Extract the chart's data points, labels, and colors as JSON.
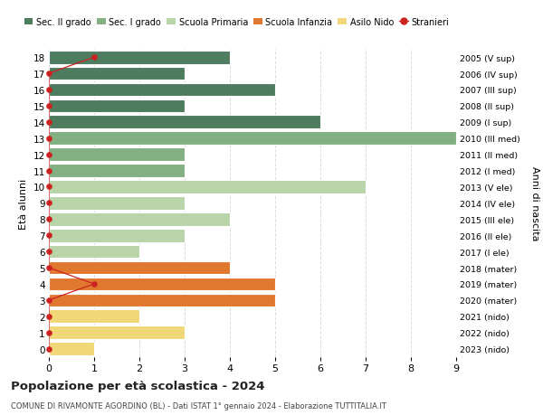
{
  "ages": [
    18,
    17,
    16,
    15,
    14,
    13,
    12,
    11,
    10,
    9,
    8,
    7,
    6,
    5,
    4,
    3,
    2,
    1,
    0
  ],
  "years": [
    "2005 (V sup)",
    "2006 (IV sup)",
    "2007 (III sup)",
    "2008 (II sup)",
    "2009 (I sup)",
    "2010 (III med)",
    "2011 (II med)",
    "2012 (I med)",
    "2013 (V ele)",
    "2014 (IV ele)",
    "2015 (III ele)",
    "2016 (II ele)",
    "2017 (I ele)",
    "2018 (mater)",
    "2019 (mater)",
    "2020 (mater)",
    "2021 (nido)",
    "2022 (nido)",
    "2023 (nido)"
  ],
  "values": [
    4,
    3,
    5,
    3,
    6,
    9,
    3,
    3,
    7,
    3,
    4,
    3,
    2,
    4,
    5,
    5,
    2,
    3,
    1
  ],
  "bar_colors": [
    "#4d7c5f",
    "#4d7c5f",
    "#4d7c5f",
    "#4d7c5f",
    "#4d7c5f",
    "#82b082",
    "#82b082",
    "#82b082",
    "#b8d4a8",
    "#b8d4a8",
    "#b8d4a8",
    "#b8d4a8",
    "#b8d4a8",
    "#e07830",
    "#e07830",
    "#e07830",
    "#f0d878",
    "#f0d878",
    "#f0d878"
  ],
  "stranieri_ages": [
    18,
    17,
    16,
    15,
    14,
    13,
    12,
    11,
    10,
    9,
    8,
    7,
    6,
    5,
    4,
    3,
    2,
    1,
    0
  ],
  "stranieri_vals": [
    1,
    0,
    0,
    0,
    0,
    0,
    0,
    0,
    0,
    0,
    0,
    0,
    0,
    0,
    1,
    0,
    0,
    0,
    0
  ],
  "color_sec2": "#4d7c5f",
  "color_sec1": "#82b082",
  "color_prim": "#b8d4a8",
  "color_inf": "#e07830",
  "color_nido": "#f0d878",
  "color_stranieri": "#cc2222",
  "title": "Popolazione per età scolastica - 2024",
  "subtitle": "COMUNE DI RIVAMONTE AGORDINO (BL) - Dati ISTAT 1° gennaio 2024 - Elaborazione TUTTITALIA.IT",
  "ylabel_left": "Età alunni",
  "ylabel_right": "Anni di nascita",
  "xlim": [
    0,
    9
  ],
  "ylim": [
    -0.5,
    18.5
  ],
  "bg_color": "#ffffff",
  "grid_color": "#dddddd",
  "legend_labels": [
    "Sec. II grado",
    "Sec. I grado",
    "Scuola Primaria",
    "Scuola Infanzia",
    "Asilo Nido",
    "Stranieri"
  ]
}
